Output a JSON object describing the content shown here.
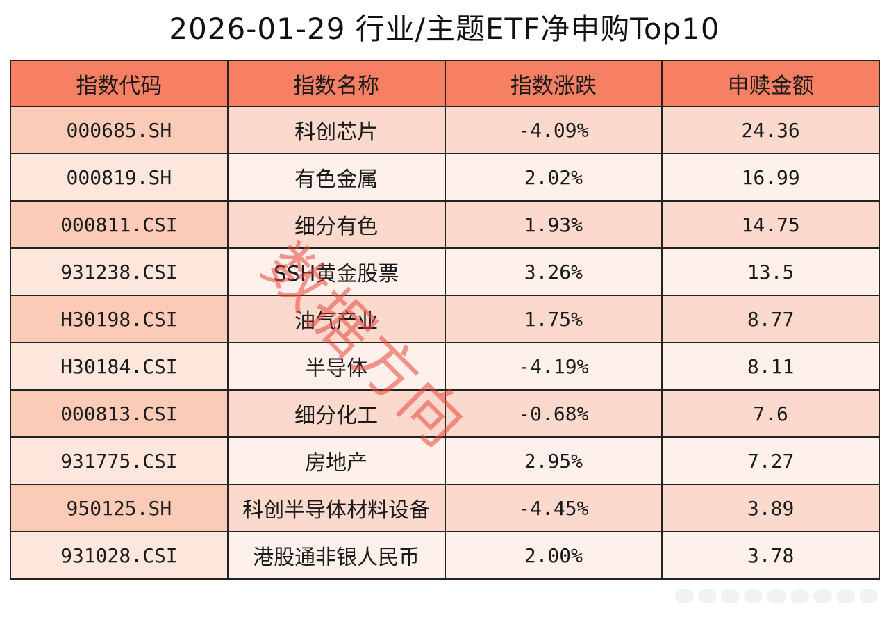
{
  "title": "2026-01-29 行业/主题ETF净申购Top10",
  "watermark": "数据方向",
  "chart_data": {
    "type": "table",
    "title": "2026-01-29 行业/主题ETF净申购Top10",
    "columns": [
      "指数代码",
      "指数名称",
      "指数涨跌",
      "申赎金额"
    ],
    "rows": [
      [
        "000685.SH",
        "科创芯片",
        "-4.09%",
        "24.36"
      ],
      [
        "000819.SH",
        "有色金属",
        "2.02%",
        "16.99"
      ],
      [
        "000811.CSI",
        "细分有色",
        "1.93%",
        "14.75"
      ],
      [
        "931238.CSI",
        "SSH黄金股票",
        "3.26%",
        "13.5"
      ],
      [
        "H30198.CSI",
        "油气产业",
        "1.75%",
        "8.77"
      ],
      [
        "H30184.CSI",
        "半导体",
        "-4.19%",
        "8.11"
      ],
      [
        "000813.CSI",
        "细分化工",
        "-0.68%",
        "7.6"
      ],
      [
        "931775.CSI",
        "房地产",
        "2.95%",
        "7.27"
      ],
      [
        "950125.SH",
        "科创半导体材料设备",
        "-4.45%",
        "3.89"
      ],
      [
        "931028.CSI",
        "港股通非银人民币",
        "2.00%",
        "3.78"
      ]
    ]
  },
  "colors": {
    "header_bg": "#f77f63",
    "row_dark": "#fbd9cd",
    "row_light": "#fef1ec",
    "watermark": "#e8463c"
  }
}
